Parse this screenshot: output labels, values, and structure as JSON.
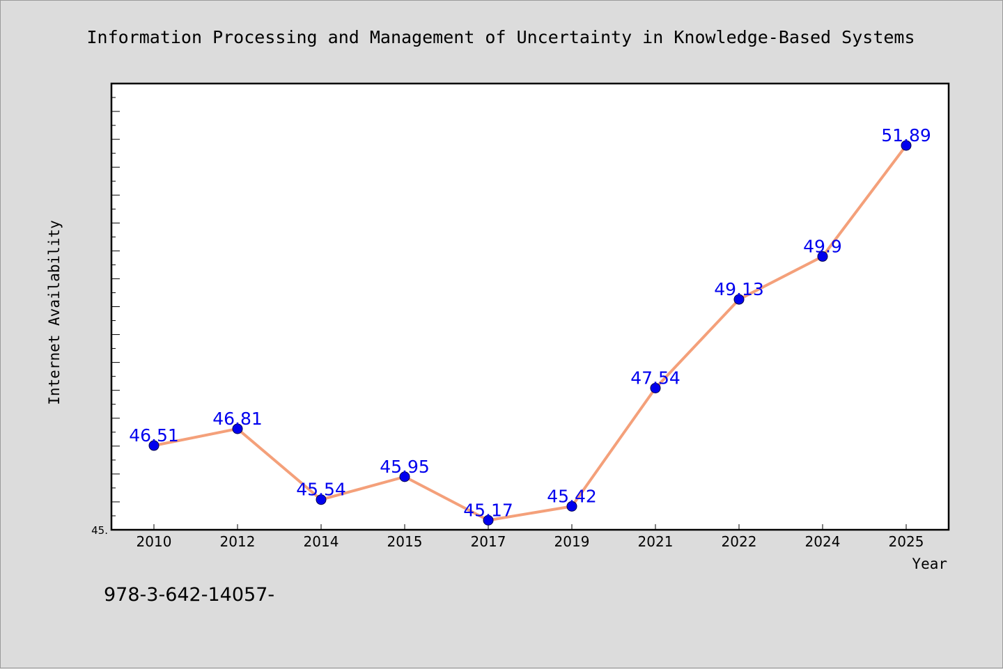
{
  "chart_data": {
    "type": "line",
    "title": "Information Processing and Management of Uncertainty in Knowledge-Based Systems",
    "xlabel": "Year",
    "ylabel": "Internet Availability",
    "categories": [
      "2010",
      "2012",
      "2014",
      "2015",
      "2017",
      "2019",
      "2021",
      "2022",
      "2024",
      "2025"
    ],
    "values": [
      46.51,
      46.81,
      45.54,
      45.95,
      45.17,
      45.42,
      47.54,
      49.13,
      49.9,
      51.89
    ],
    "data_labels": [
      "46.51",
      "46.81",
      "45.54",
      "45.95",
      "45.17",
      "45.42",
      "47.54",
      "49.13",
      "49.9",
      "51.89"
    ],
    "ylim": [
      45.0,
      53.0
    ],
    "y_tick_label": "45.",
    "grid": false,
    "line_color": "#f4a07a",
    "marker_color": "#0000ee",
    "label_color": "#0000ee",
    "annotation": "978-3-642-14057-"
  }
}
